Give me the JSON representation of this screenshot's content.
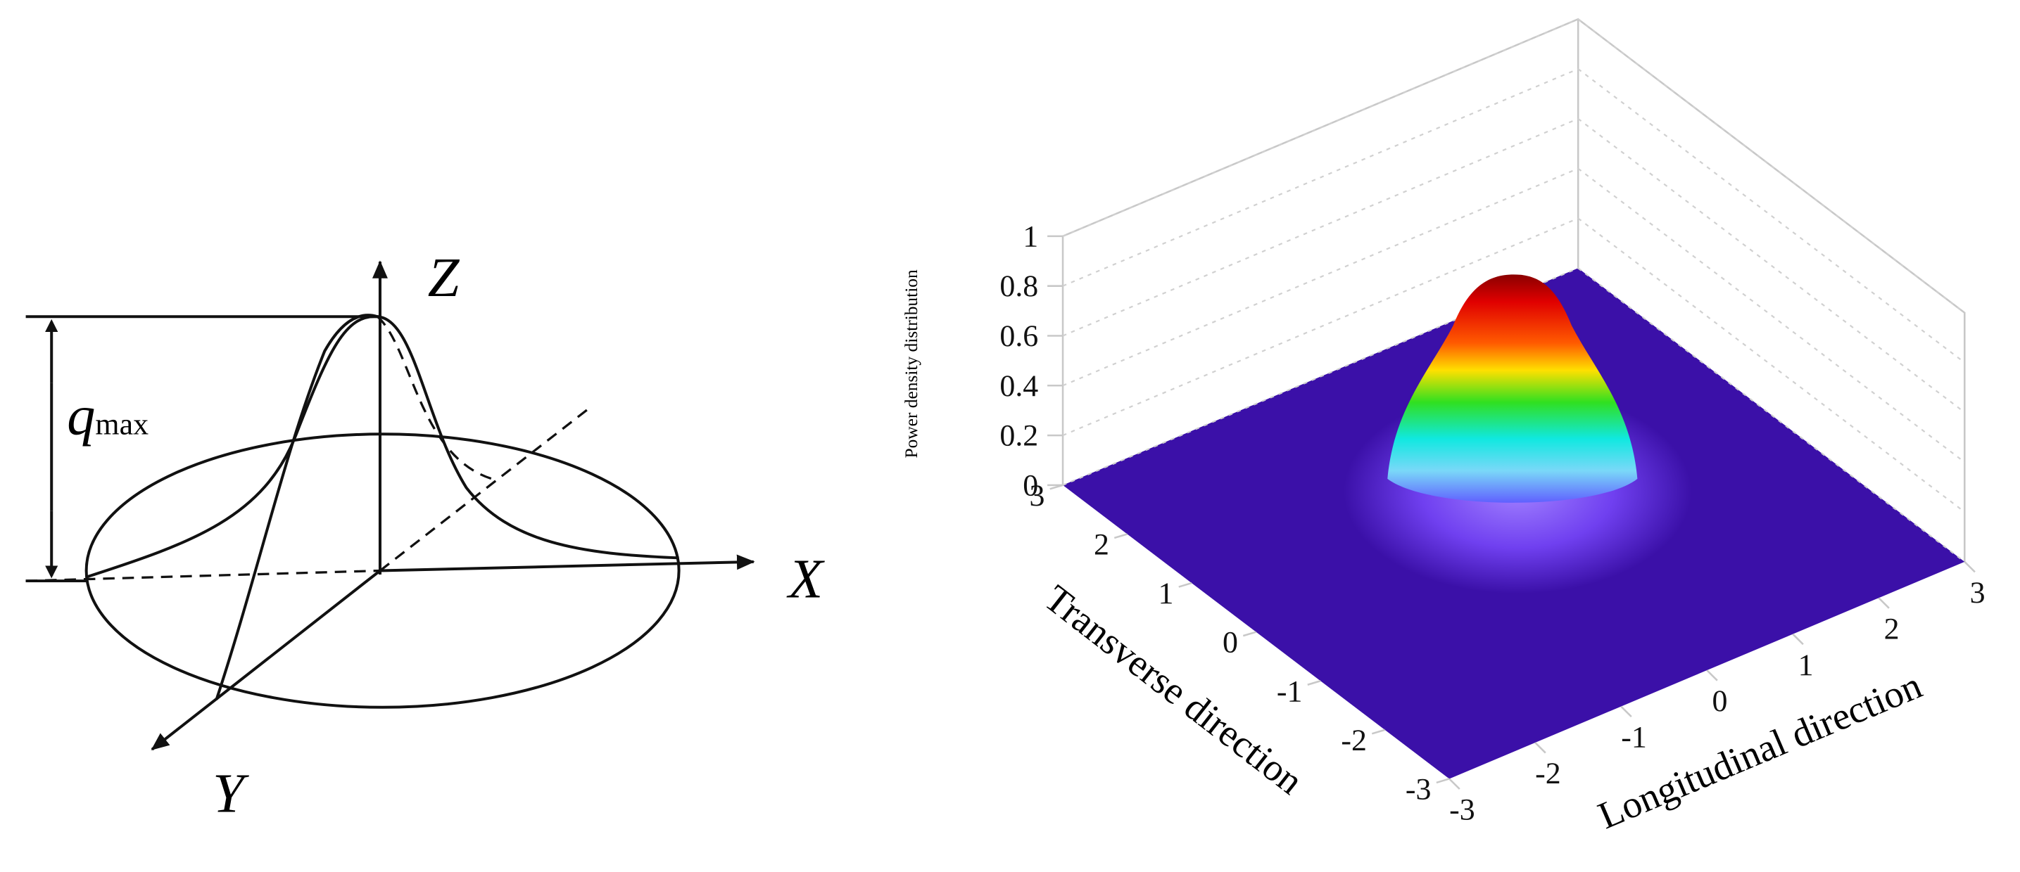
{
  "left_diagram": {
    "z_label": "Z",
    "x_label": "X",
    "y_label": "Y",
    "q_label": "q",
    "q_subscript": "max"
  },
  "right_chart": {
    "z_axis_label": "Power density distribution",
    "z_ticks": [
      0,
      0.2,
      0.4,
      0.6,
      0.8,
      1
    ],
    "x_axis_label": "Longitudinal direction",
    "x_ticks": [
      -3,
      -2,
      -1,
      0,
      1,
      2,
      3
    ],
    "y_axis_label": "Transverse direction",
    "y_ticks": [
      -3,
      -2,
      -1,
      0,
      1,
      2,
      3
    ]
  }
}
